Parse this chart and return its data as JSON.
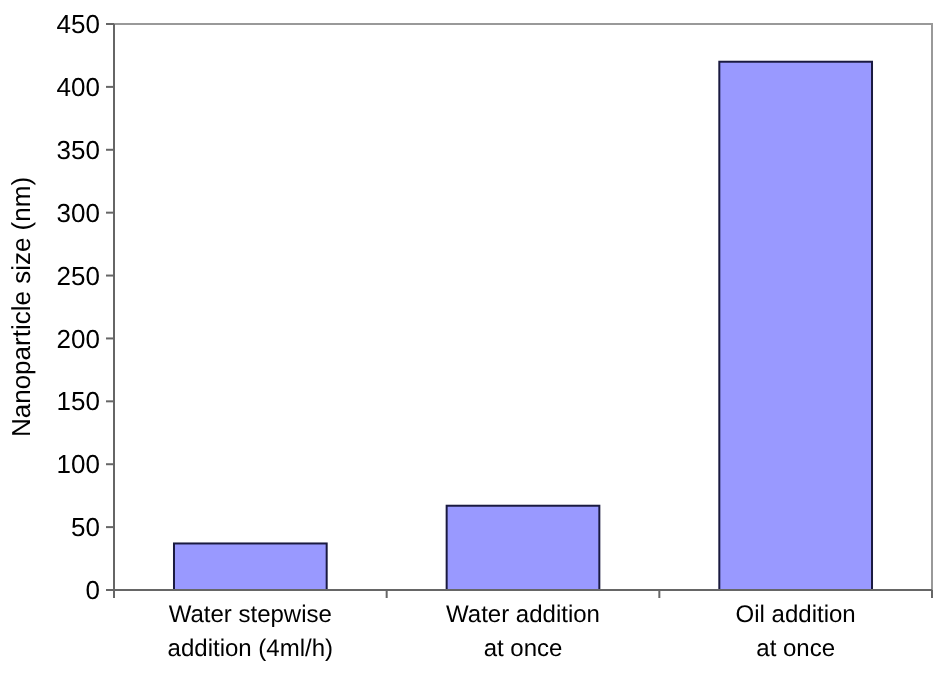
{
  "chart_data": {
    "type": "bar",
    "ylabel": "Nanoparticle size (nm)",
    "categories": [
      "Water stepwise addition (4ml/h)",
      "Water addition at once",
      "Oil addition at once"
    ],
    "values": [
      37,
      67,
      420
    ],
    "color": "#9999ff",
    "ylim": [
      0,
      450
    ],
    "yticks": [
      0,
      50,
      100,
      150,
      200,
      250,
      300,
      350,
      400,
      450
    ],
    "grid": false
  }
}
